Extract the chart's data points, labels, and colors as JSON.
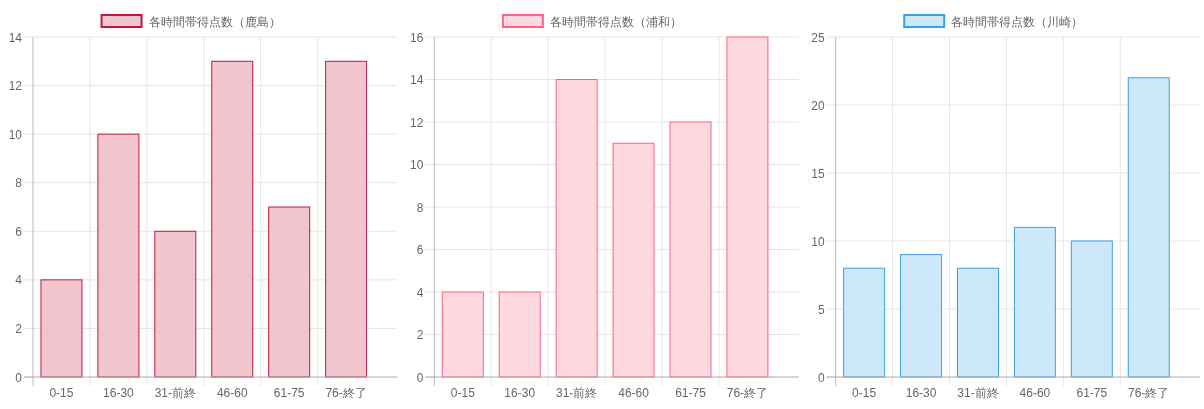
{
  "chart_data": [
    {
      "type": "bar",
      "categories": [
        "0-15",
        "16-30",
        "31-前終",
        "46-60",
        "61-75",
        "76-終了"
      ],
      "series": [
        {
          "name": "各時間帯得点数（鹿島）",
          "color": "#c2183b",
          "values": [
            4,
            10,
            6,
            13,
            7,
            13
          ]
        }
      ],
      "ylim": [
        0,
        14
      ],
      "yticks": [
        0,
        2,
        4,
        6,
        8,
        10,
        12,
        14
      ],
      "grid": true,
      "legend": "top"
    },
    {
      "type": "bar",
      "categories": [
        "0-15",
        "16-30",
        "31-前終",
        "46-60",
        "61-75",
        "76-終了"
      ],
      "series": [
        {
          "name": "各時間帯得点数（浦和）",
          "color": "#ff6384",
          "values": [
            4,
            4,
            14,
            11,
            12,
            16
          ]
        }
      ],
      "ylim": [
        0,
        16
      ],
      "yticks": [
        0,
        2,
        4,
        6,
        8,
        10,
        12,
        14,
        16
      ],
      "grid": true,
      "legend": "top"
    },
    {
      "type": "bar",
      "categories": [
        "0-15",
        "16-30",
        "31-前終",
        "46-60",
        "61-75",
        "76-終了"
      ],
      "series": [
        {
          "name": "各時間帯得点数（川崎）",
          "color": "#36a2eb",
          "values": [
            8,
            9,
            8,
            11,
            10,
            22
          ]
        }
      ],
      "ylim": [
        0,
        25
      ],
      "yticks": [
        0,
        5,
        10,
        15,
        20,
        25
      ],
      "grid": true,
      "legend": "top"
    }
  ]
}
